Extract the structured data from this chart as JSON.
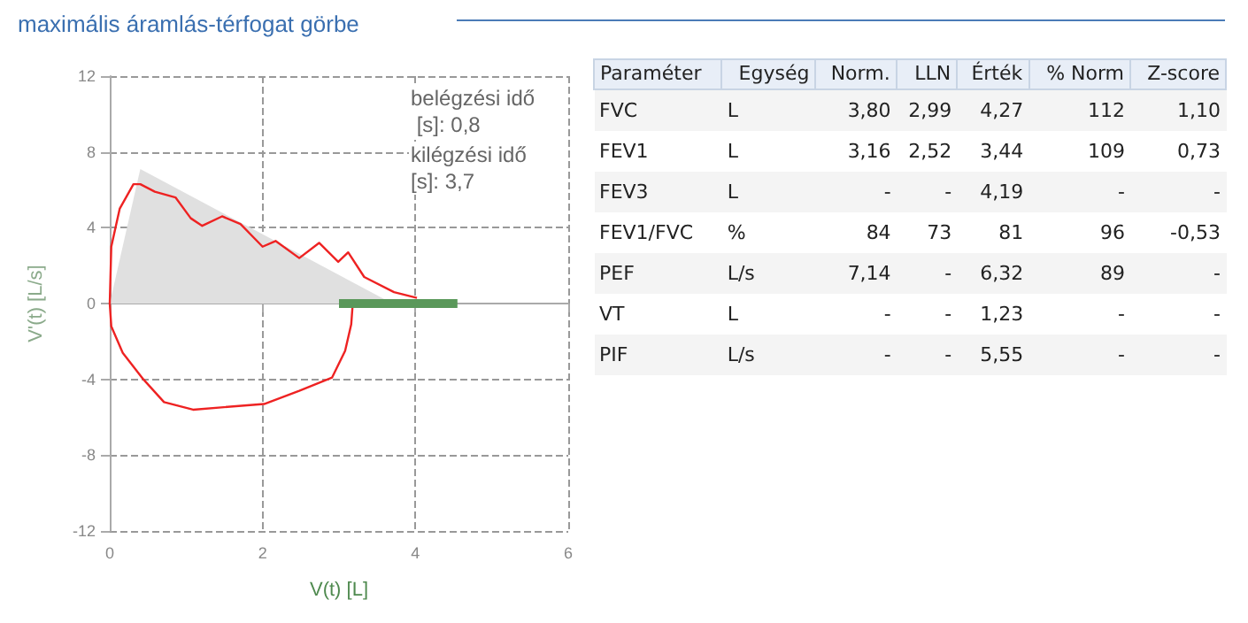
{
  "chart_data": [
    {
      "type": "line",
      "title": "maximális áramlás-térfogat görbe",
      "xlabel": "V(t) [L]",
      "ylabel": "V'(t) [L/s]",
      "xlim": [
        0,
        6
      ],
      "xticks": [
        0,
        2,
        4,
        6
      ],
      "ylim": [
        -12,
        12
      ],
      "yticks": [
        -12,
        -8,
        -4,
        0,
        4,
        8,
        12
      ],
      "grid": true,
      "marker": "none",
      "line_style": "solid",
      "annotations": [
        "belégzési idő [s]: 0,8",
        "kilégzési idő [s]: 3,7"
      ],
      "series": [
        {
          "type": "area",
          "color": "#e0e0e0",
          "x": [
            0,
            0.4,
            3.7
          ],
          "values": [
            0,
            7.1,
            0
          ]
        },
        {
          "type": "line",
          "color": "#ee2222",
          "x": [
            3.18,
            3.16,
            3.08,
            2.91,
            2.48,
            2.02,
            1.09,
            0.71,
            0.44,
            0.17,
            0.02,
            0,
            0.02,
            0.13,
            0.31,
            0.4,
            0.59,
            0.86,
            1.06,
            1.21,
            1.47,
            1.71,
            2.0,
            2.17,
            2.48,
            2.74,
            2.99,
            3.12,
            3.33,
            3.72,
            4.02
          ],
          "values": [
            0,
            -1.1,
            -2.5,
            -3.9,
            -4.6,
            -5.3,
            -5.6,
            -5.2,
            -4.0,
            -2.6,
            -1.2,
            0,
            3.0,
            5.0,
            6.3,
            6.3,
            5.9,
            5.6,
            4.5,
            4.1,
            4.6,
            4.2,
            3.0,
            3.3,
            2.4,
            3.2,
            2.2,
            2.7,
            1.4,
            0.6,
            0.3
          ]
        },
        {
          "type": "line",
          "color": "#5a985a",
          "x": [
            3.0,
            4.55
          ],
          "values": [
            0,
            0
          ]
        }
      ]
    },
    {
      "type": "other",
      "categories": [
        "Paraméter",
        "Egység",
        "Norm.",
        "LLN",
        "Érték",
        "% Norm",
        "Z-score"
      ],
      "y_categories": [
        "FVC",
        "FEV1",
        "FEV3",
        "FEV1/FVC",
        "PEF",
        "VT",
        "PIF"
      ],
      "cell_labels": [
        [
          "L",
          "3,80",
          "2,99",
          "4,27",
          "112",
          "1,10"
        ],
        [
          "L",
          "3,16",
          "2,52",
          "3,44",
          "109",
          "0,73"
        ],
        [
          "L",
          "-",
          "-",
          "4,19",
          "-",
          "-"
        ],
        [
          "%",
          "84",
          "73",
          "81",
          "96",
          "-0,53"
        ],
        [
          "L/s",
          "7,14",
          "-",
          "6,32",
          "89",
          "-"
        ],
        [
          "L",
          "-",
          "-",
          "1,23",
          "-",
          "-"
        ],
        [
          "L/s",
          "-",
          "-",
          "5,55",
          "-",
          "-"
        ]
      ]
    }
  ]
}
